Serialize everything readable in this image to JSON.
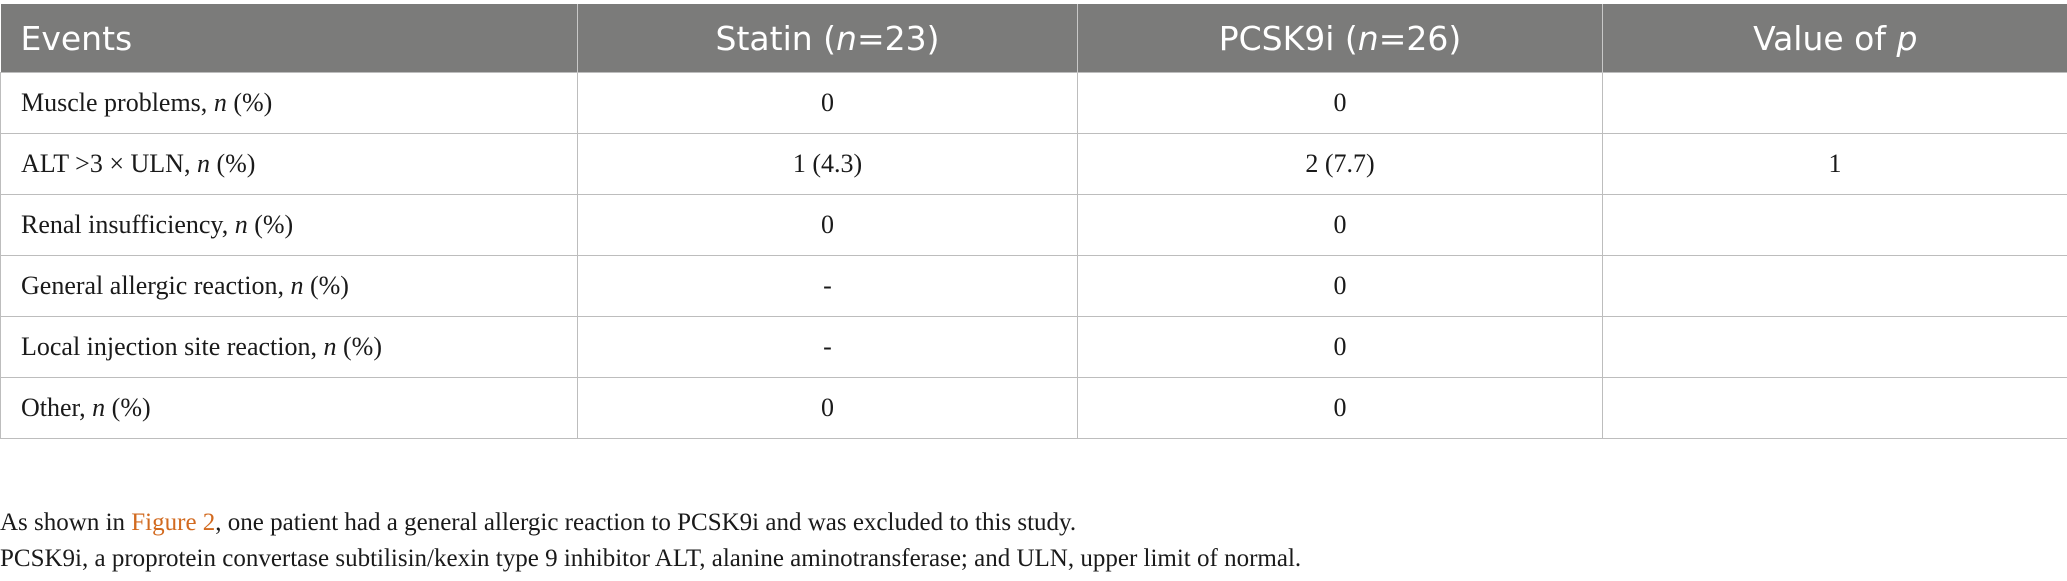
{
  "table": {
    "headers": [
      {
        "text": "Events",
        "italic": "",
        "suffix": ""
      },
      {
        "text": "Statin (",
        "italic": "n",
        "suffix": "=23)"
      },
      {
        "text": "PCSK9i (",
        "italic": "n",
        "suffix": "=26)"
      },
      {
        "text": "Value of ",
        "italic": "p",
        "suffix": ""
      }
    ],
    "rows": [
      {
        "event": "Muscle problems, ",
        "event_italic": "n",
        "event_suffix": " (%)",
        "statin": "0",
        "pcsk9i": "0",
        "p": ""
      },
      {
        "event": "ALT >3 × ULN, ",
        "event_italic": "n",
        "event_suffix": " (%)",
        "statin": "1 (4.3)",
        "pcsk9i": "2 (7.7)",
        "p": "1"
      },
      {
        "event": "Renal insufficiency, ",
        "event_italic": "n",
        "event_suffix": " (%)",
        "statin": "0",
        "pcsk9i": "0",
        "p": ""
      },
      {
        "event": "General allergic reaction, ",
        "event_italic": "n",
        "event_suffix": " (%)",
        "statin": "-",
        "pcsk9i": "0",
        "p": ""
      },
      {
        "event": "Local injection site reaction, ",
        "event_italic": "n",
        "event_suffix": " (%)",
        "statin": "-",
        "pcsk9i": "0",
        "p": ""
      },
      {
        "event": "Other, ",
        "event_italic": "n",
        "event_suffix": " (%)",
        "statin": "0",
        "pcsk9i": "0",
        "p": ""
      }
    ]
  },
  "footnotes": {
    "line1_prefix": "As shown in ",
    "line1_link": "Figure 2",
    "line1_suffix": ", one patient had a general allergic reaction to PCSK9i and was excluded to this study.",
    "line2": "PCSK9i, a proprotein convertase subtilisin/kexin type 9 inhibitor ALT, alanine aminotransferase; and ULN, upper limit of normal."
  },
  "colors": {
    "header_bg": "#7b7b7a",
    "link": "#d26a1f"
  }
}
